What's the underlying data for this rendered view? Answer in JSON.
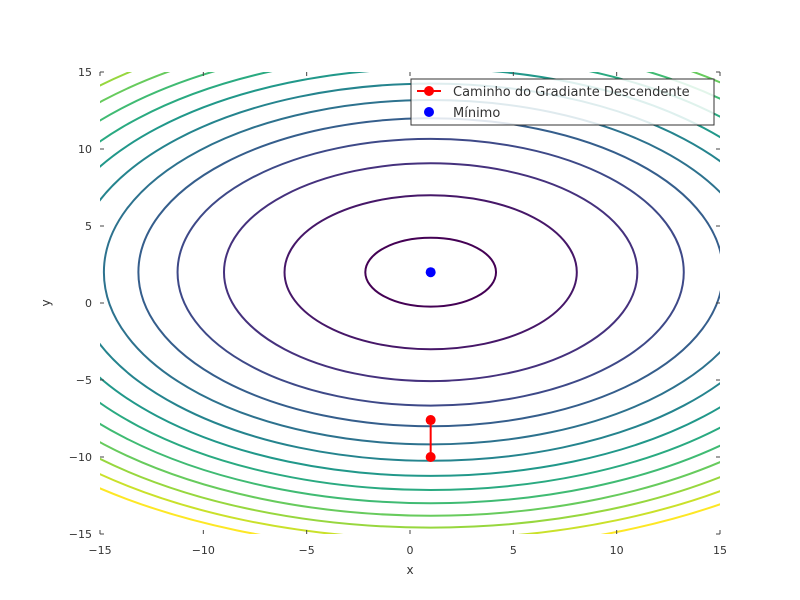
{
  "chart_data": {
    "type": "line",
    "title": "",
    "xlabel": "x",
    "ylabel": "y",
    "xlim": [
      -15,
      15
    ],
    "ylim": [
      -15,
      15
    ],
    "x_ticks": [
      -15,
      -10,
      -5,
      0,
      5,
      10,
      15
    ],
    "y_ticks": [
      -15,
      -10,
      -5,
      0,
      5,
      10,
      15
    ],
    "x_tick_labels": [
      "−15",
      "−10",
      "−5",
      "0",
      "5",
      "10",
      "15"
    ],
    "y_tick_labels": [
      "−15",
      "−10",
      "−5",
      "0",
      "5",
      "10",
      "15"
    ],
    "grid": false,
    "legend_position": "top-right",
    "contours": {
      "center": [
        1,
        2
      ],
      "x_coef": 1,
      "y_coef": 2,
      "levels": [
        10,
        50,
        100,
        150,
        200,
        250,
        300,
        350,
        400,
        450,
        500,
        550,
        600,
        650
      ],
      "colormap": "viridis"
    },
    "series": [
      {
        "name": "Caminho do Gradiante Descendente",
        "kind": "line+marker",
        "color": "#ff0000",
        "x": [
          1,
          1
        ],
        "y": [
          -10,
          -7.6
        ]
      },
      {
        "name": "Mínimo",
        "kind": "marker",
        "color": "#0000ff",
        "x": [
          1
        ],
        "y": [
          2
        ]
      }
    ]
  }
}
